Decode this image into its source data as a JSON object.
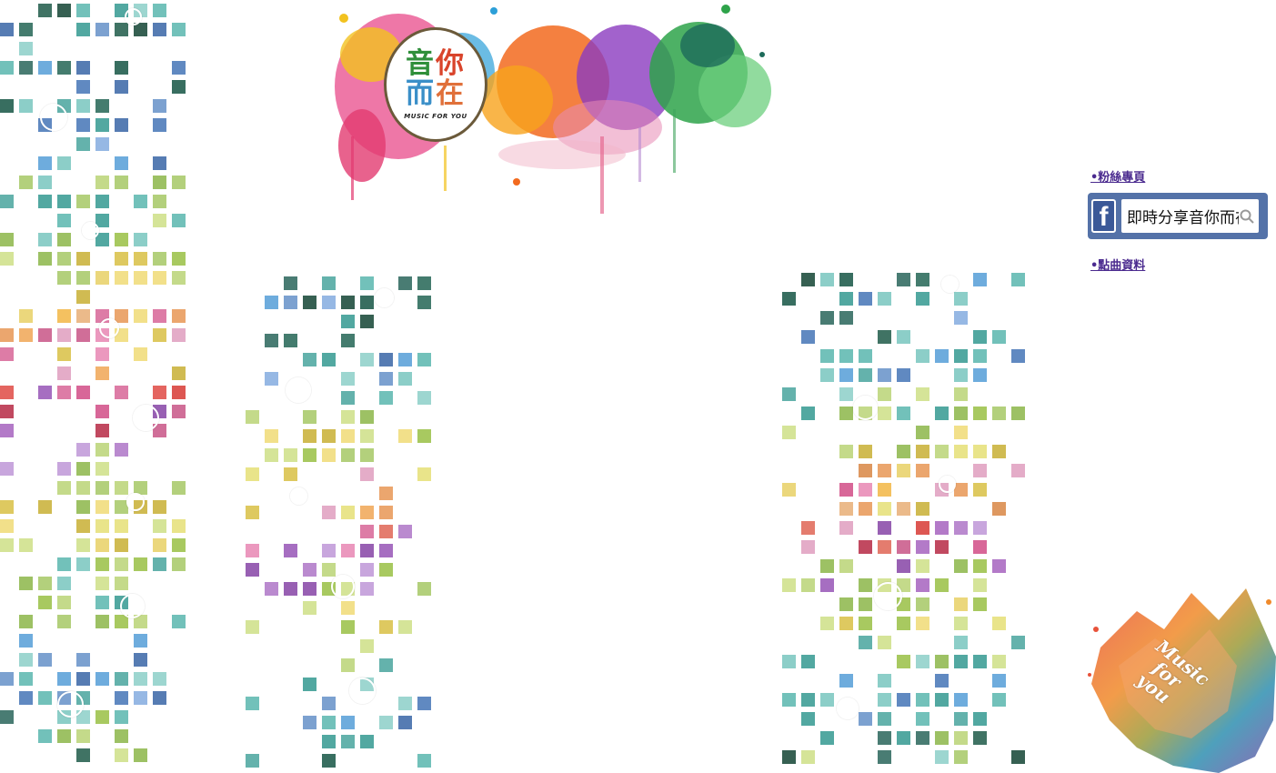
{
  "logo": {
    "chars": [
      "音",
      "你",
      "而",
      "在"
    ],
    "subtitle": "MUSIC FOR YOU"
  },
  "sidebar": {
    "fans_link": "•粉絲專頁",
    "facebook_search_text": "即時分享音你而在",
    "songs_link": "•點曲資料"
  },
  "decor": {
    "splash_lines": [
      "Music",
      "for",
      "you"
    ]
  },
  "colors": {
    "link": "#4b2b8f",
    "facebook_blue": "#3b5998",
    "facebook_frame": "#5472a8"
  },
  "icons": {
    "facebook": "facebook-icon",
    "search": "search-icon"
  }
}
